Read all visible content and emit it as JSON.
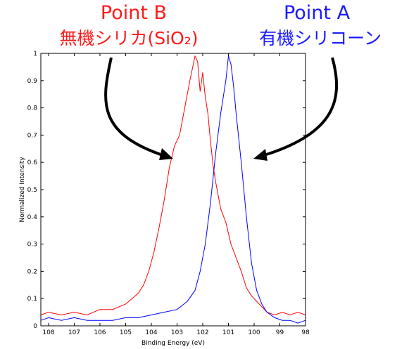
{
  "annotations": {
    "point_b": {
      "title": "Point B",
      "subtitle": "無機シリカ(SiO₂)",
      "color": "#ff1a1a"
    },
    "point_a": {
      "title": "Point A",
      "subtitle": "有機シリコーン",
      "color": "#1a1aff"
    }
  },
  "chart_data": {
    "type": "line",
    "xlabel": "Binding Energy (eV)",
    "ylabel": "Normalized Intensity",
    "xlim": [
      108.3,
      98.0
    ],
    "ylim": [
      0,
      1
    ],
    "x_reversed": true,
    "grid": false,
    "xticks": [
      108,
      107,
      106,
      105,
      104,
      103,
      102,
      101,
      100,
      99,
      98
    ],
    "yticks": [
      0,
      0.1,
      0.2,
      0.3,
      0.4,
      0.5,
      0.6,
      0.7,
      0.8,
      0.9,
      1
    ],
    "series": [
      {
        "color": "#ff0000",
        "x": [
          108.3,
          108.0,
          107.5,
          107.0,
          106.5,
          106.0,
          105.5,
          105.0,
          104.5,
          104.3,
          104.1,
          103.9,
          103.7,
          103.5,
          103.3,
          103.1,
          102.9,
          102.7,
          102.5,
          102.3,
          102.2,
          102.1,
          102.0,
          101.9,
          101.8,
          101.7,
          101.6,
          101.5,
          101.3,
          101.1,
          100.9,
          100.7,
          100.5,
          100.3,
          100.1,
          99.9,
          99.7,
          99.5,
          99.2,
          98.9,
          98.6,
          98.3,
          98.0
        ],
        "y": [
          0.04,
          0.05,
          0.04,
          0.05,
          0.04,
          0.06,
          0.06,
          0.08,
          0.12,
          0.15,
          0.2,
          0.27,
          0.36,
          0.46,
          0.58,
          0.66,
          0.7,
          0.8,
          0.9,
          0.99,
          0.97,
          0.86,
          0.93,
          0.84,
          0.78,
          0.68,
          0.59,
          0.53,
          0.43,
          0.38,
          0.3,
          0.25,
          0.2,
          0.14,
          0.11,
          0.09,
          0.07,
          0.05,
          0.04,
          0.05,
          0.04,
          0.05,
          0.04
        ]
      },
      {
        "color": "#0000ff",
        "x": [
          108.3,
          108.0,
          107.5,
          107.0,
          106.5,
          106.0,
          105.5,
          105.0,
          104.5,
          104.0,
          103.5,
          103.0,
          102.6,
          102.3,
          102.1,
          101.9,
          101.7,
          101.5,
          101.3,
          101.1,
          101.0,
          100.9,
          100.8,
          100.7,
          100.5,
          100.3,
          100.1,
          99.9,
          99.7,
          99.5,
          99.2,
          98.9,
          98.6,
          98.3,
          98.0
        ],
        "y": [
          0.02,
          0.03,
          0.02,
          0.03,
          0.02,
          0.02,
          0.02,
          0.03,
          0.03,
          0.04,
          0.05,
          0.06,
          0.09,
          0.13,
          0.2,
          0.3,
          0.45,
          0.63,
          0.78,
          0.9,
          0.99,
          0.96,
          0.88,
          0.78,
          0.6,
          0.4,
          0.23,
          0.13,
          0.08,
          0.05,
          0.03,
          0.02,
          0.02,
          0.01,
          0.02
        ]
      }
    ]
  }
}
